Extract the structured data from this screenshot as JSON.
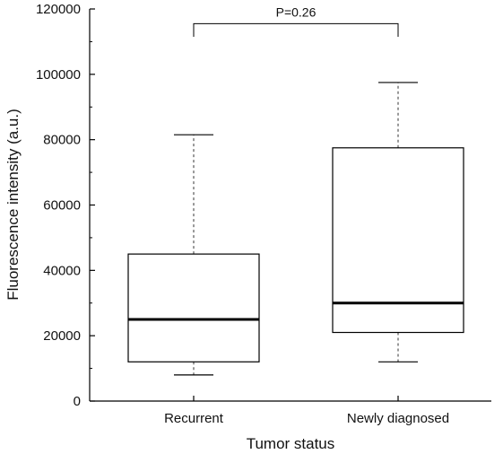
{
  "chart_data": {
    "type": "box",
    "xlabel": "Tumor status",
    "ylabel": "Fluorescence intensity (a.u.)",
    "ylim": [
      0,
      120000
    ],
    "yticks": [
      0,
      20000,
      40000,
      60000,
      80000,
      100000,
      120000
    ],
    "grid": false,
    "categories": [
      "Recurrent",
      "Newly diagnosed"
    ],
    "boxes": [
      {
        "category": "Recurrent",
        "whisker_low": 8000,
        "q1": 12000,
        "median": 25000,
        "q3": 45000,
        "whisker_high": 81500
      },
      {
        "category": "Newly diagnosed",
        "whisker_low": 12000,
        "q1": 21000,
        "median": 30000,
        "q3": 77500,
        "whisker_high": 97500
      }
    ],
    "annotations": [
      {
        "text": "P=0.26",
        "between": [
          "Recurrent",
          "Newly diagnosed"
        ],
        "y": 115500,
        "bracket_drop": 4000
      }
    ]
  }
}
